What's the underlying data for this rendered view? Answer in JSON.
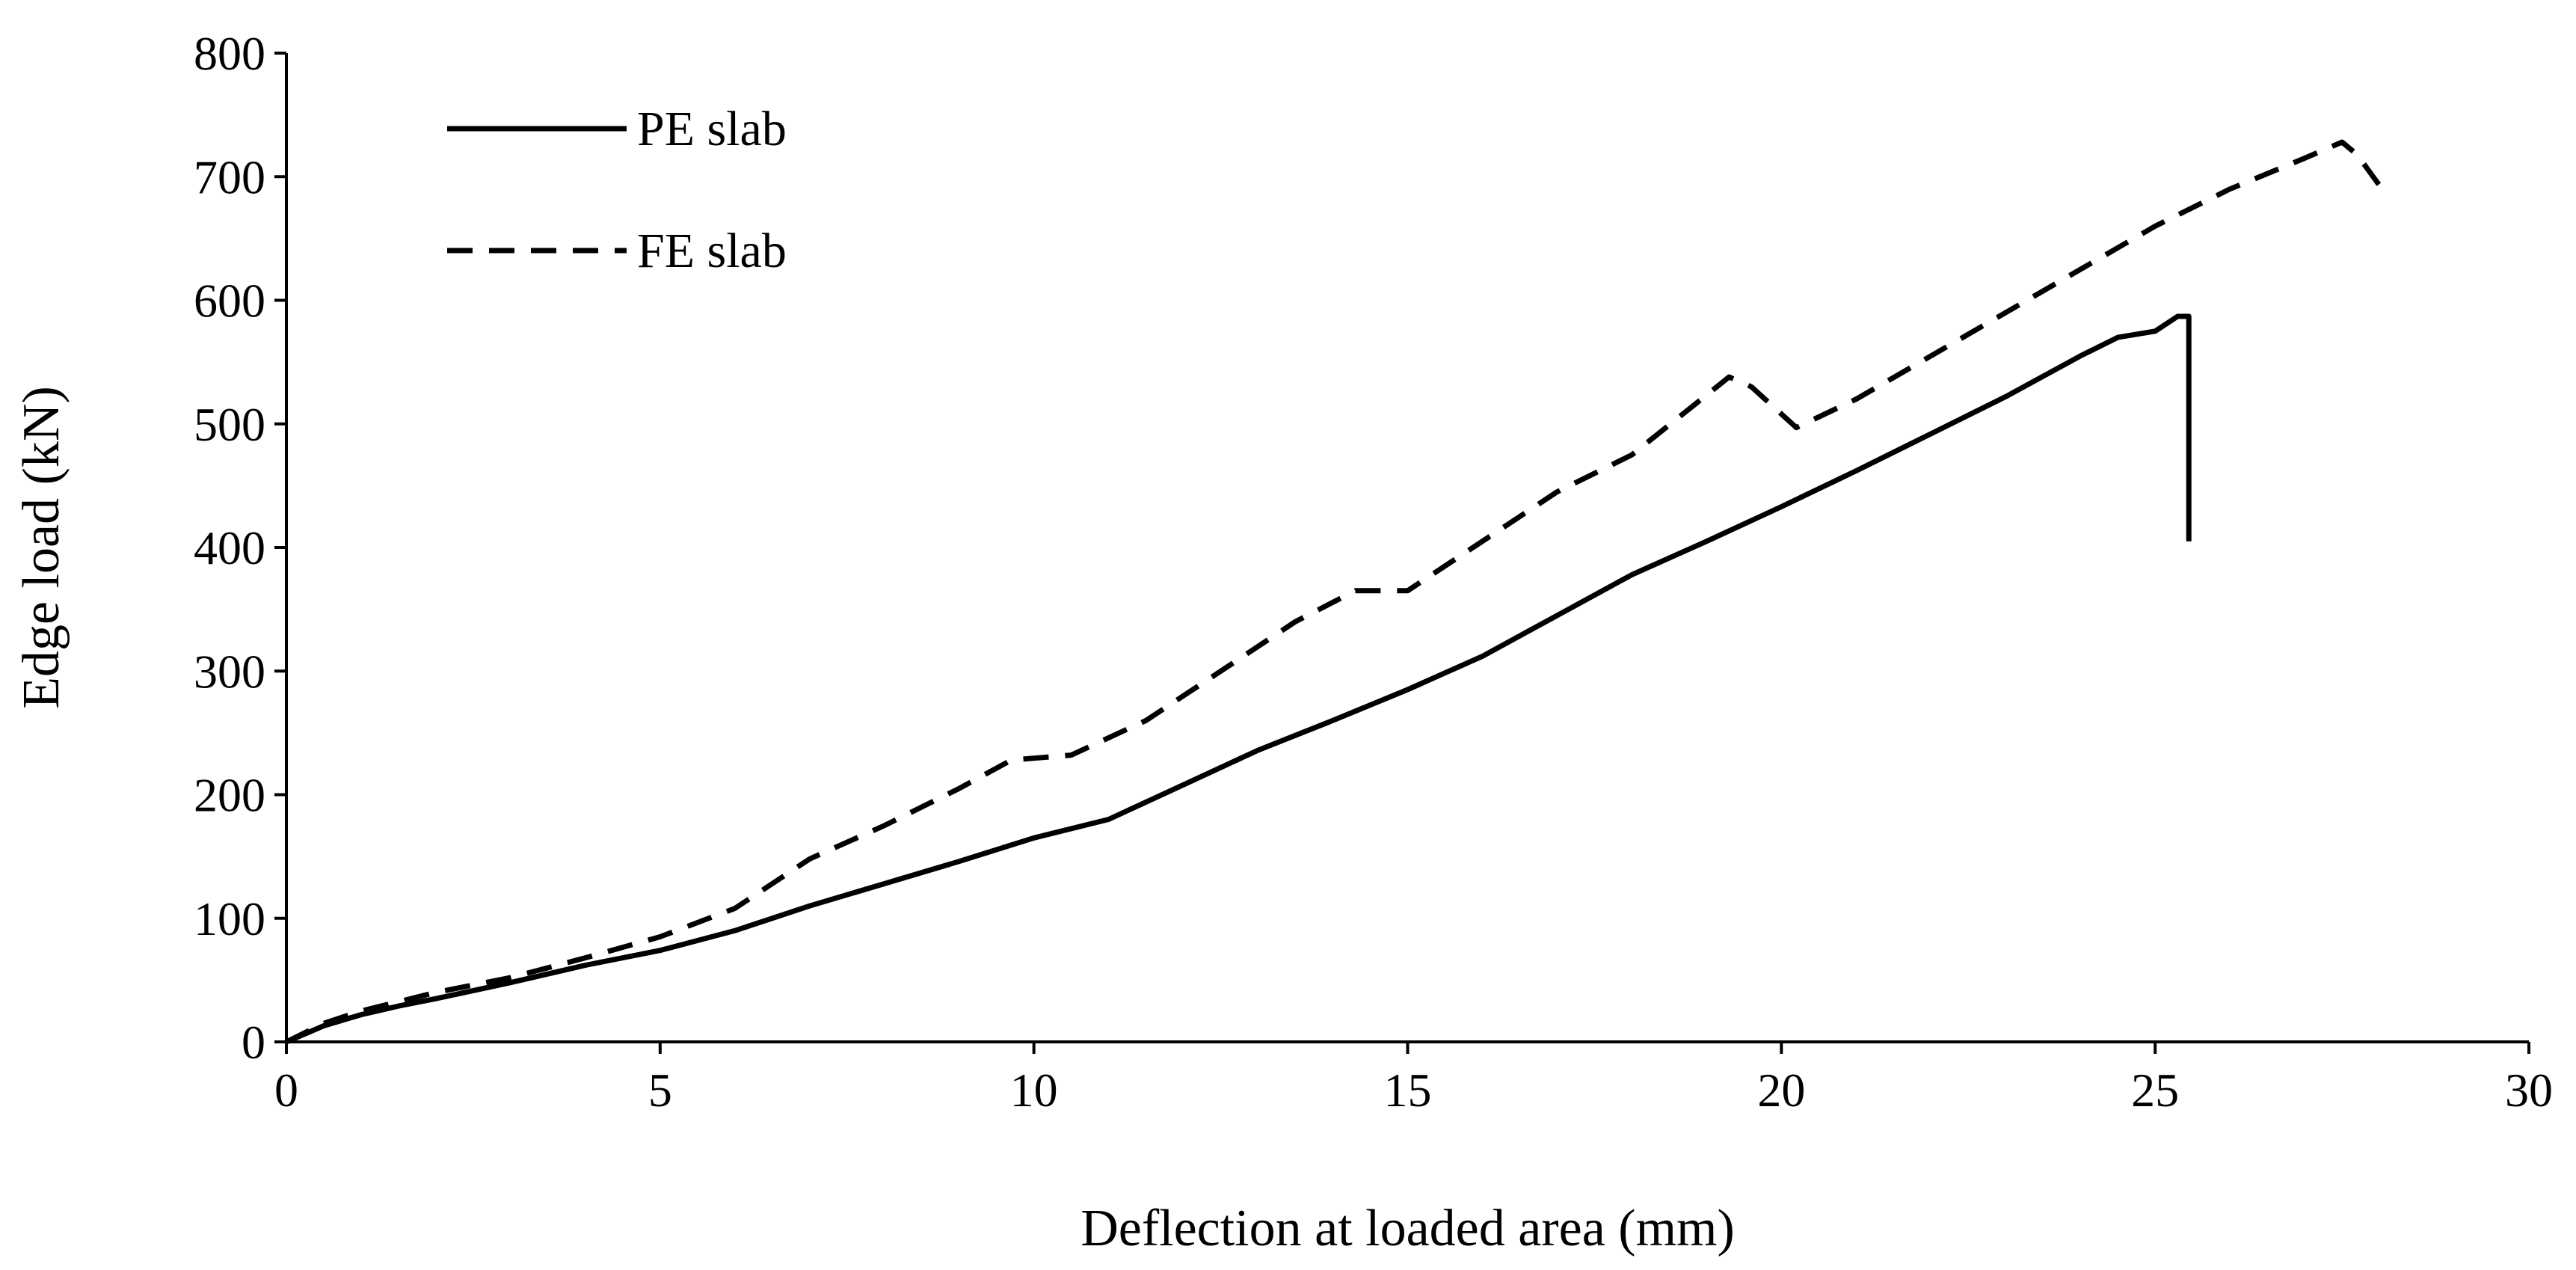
{
  "chart_data": {
    "type": "line",
    "title": "",
    "xlabel": "Deflection at loaded area (mm)",
    "ylabel": "Edge load (kN)",
    "xlim": [
      0,
      30
    ],
    "ylim": [
      0,
      800
    ],
    "xticks": [
      0,
      5,
      10,
      15,
      20,
      25,
      30
    ],
    "yticks": [
      0,
      100,
      200,
      300,
      400,
      500,
      600,
      700,
      800
    ],
    "grid": false,
    "legend_position": "top-left",
    "series": [
      {
        "name": "PE slab",
        "style": "solid",
        "color": "#000000",
        "points": [
          [
            0,
            0
          ],
          [
            0.5,
            13
          ],
          [
            1,
            22
          ],
          [
            1.5,
            29
          ],
          [
            2,
            35
          ],
          [
            3,
            48
          ],
          [
            4,
            62
          ],
          [
            5,
            74
          ],
          [
            6,
            90
          ],
          [
            7,
            110
          ],
          [
            8,
            128
          ],
          [
            9,
            146
          ],
          [
            10,
            165
          ],
          [
            11,
            180
          ],
          [
            12,
            208
          ],
          [
            13,
            236
          ],
          [
            14,
            260
          ],
          [
            15,
            285
          ],
          [
            16,
            312
          ],
          [
            17,
            345
          ],
          [
            18,
            378
          ],
          [
            19,
            405
          ],
          [
            20,
            433
          ],
          [
            21,
            462
          ],
          [
            22,
            492
          ],
          [
            23,
            522
          ],
          [
            24,
            555
          ],
          [
            24.5,
            570
          ],
          [
            25,
            575
          ],
          [
            25.3,
            587
          ],
          [
            25.45,
            587
          ],
          [
            25.45,
            405
          ]
        ]
      },
      {
        "name": "FE slab",
        "style": "dashed",
        "color": "#000000",
        "points": [
          [
            0,
            0
          ],
          [
            0.5,
            15
          ],
          [
            1,
            25
          ],
          [
            2,
            40
          ],
          [
            3,
            52
          ],
          [
            4,
            68
          ],
          [
            5,
            85
          ],
          [
            6,
            108
          ],
          [
            7,
            148
          ],
          [
            8,
            175
          ],
          [
            9,
            205
          ],
          [
            9.7,
            228
          ],
          [
            10.5,
            232
          ],
          [
            11.5,
            260
          ],
          [
            12.5,
            300
          ],
          [
            13.5,
            340
          ],
          [
            14.3,
            365
          ],
          [
            15,
            365
          ],
          [
            16,
            405
          ],
          [
            17,
            445
          ],
          [
            18,
            475
          ],
          [
            19.3,
            538
          ],
          [
            19.6,
            530
          ],
          [
            20.2,
            497
          ],
          [
            21,
            520
          ],
          [
            22,
            555
          ],
          [
            23,
            590
          ],
          [
            24,
            625
          ],
          [
            25,
            660
          ],
          [
            26,
            690
          ],
          [
            27,
            715
          ],
          [
            27.5,
            728
          ],
          [
            27.7,
            718
          ],
          [
            28,
            693
          ]
        ]
      }
    ]
  }
}
